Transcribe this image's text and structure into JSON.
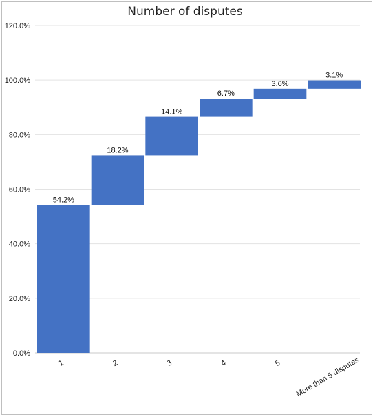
{
  "chart_data": {
    "type": "bar",
    "subtype": "waterfall",
    "title": "Number of disputes",
    "xlabel": "",
    "ylabel": "",
    "categories": [
      "1",
      "2",
      "3",
      "4",
      "5",
      "More than 5 disputes"
    ],
    "values": [
      54.2,
      18.2,
      14.1,
      6.7,
      3.6,
      3.1
    ],
    "data_labels": [
      "54.2%",
      "18.2%",
      "14.1%",
      "6.7%",
      "3.6%",
      "3.1%"
    ],
    "ylim": [
      0,
      120
    ],
    "yticks": [
      "0.0%",
      "20.0%",
      "40.0%",
      "60.0%",
      "80.0%",
      "100.0%",
      "120.0%"
    ],
    "grid": true,
    "legend": "none",
    "bar_color": "#4472c4"
  }
}
